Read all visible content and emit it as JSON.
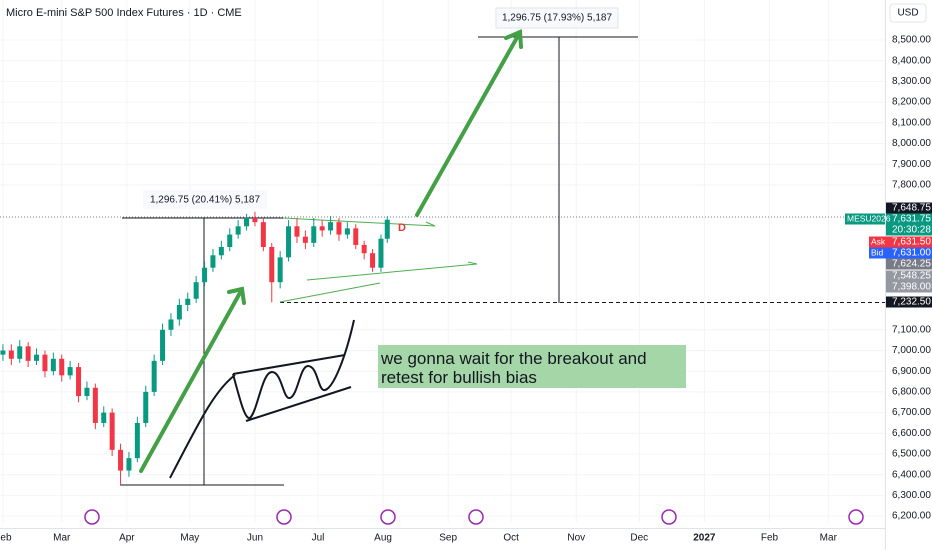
{
  "chart_data": {
    "type": "candlestick",
    "title": "Micro E-mini S&P 500 Index Futures · 1D · CME",
    "currency": "USD",
    "x": [
      31,
      35,
      39,
      43,
      47,
      51,
      55,
      59,
      63,
      67,
      71,
      75,
      79,
      83,
      87,
      91,
      95,
      99,
      103,
      107,
      111,
      115,
      119,
      123,
      127,
      131,
      135,
      139,
      143,
      147,
      151,
      155,
      159,
      163,
      167,
      171,
      175,
      179,
      183,
      187,
      191,
      195,
      199,
      203,
      207,
      211,
      214
    ],
    "open": [
      6980,
      7000,
      6960,
      7020,
      6950,
      6980,
      6900,
      6960,
      6880,
      6920,
      6780,
      6820,
      6650,
      6700,
      6520,
      6420,
      6480,
      6650,
      6800,
      6950,
      7100,
      7150,
      7220,
      7250,
      7330,
      7400,
      7460,
      7500,
      7560,
      7600,
      7640,
      7620,
      7500,
      7330,
      7450,
      7600,
      7550,
      7520,
      7600,
      7580,
      7620,
      7560,
      7590,
      7510,
      7470,
      7400,
      7540
    ],
    "high": [
      7030,
      7030,
      7050,
      7040,
      7010,
      7000,
      6990,
      6980,
      6950,
      6940,
      6850,
      6840,
      6730,
      6720,
      6550,
      6510,
      6680,
      6830,
      6980,
      7130,
      7180,
      7250,
      7280,
      7360,
      7430,
      7490,
      7530,
      7590,
      7630,
      7660,
      7670,
      7640,
      7520,
      7480,
      7630,
      7640,
      7580,
      7640,
      7630,
      7650,
      7640,
      7620,
      7610,
      7530,
      7490,
      7560,
      7648.75
    ],
    "low": [
      6950,
      6930,
      6940,
      6920,
      6930,
      6870,
      6880,
      6850,
      6860,
      6750,
      6760,
      6620,
      6630,
      6490,
      6350,
      6390,
      6460,
      6630,
      6780,
      6930,
      7070,
      7120,
      7190,
      7230,
      7310,
      7380,
      7440,
      7480,
      7540,
      7580,
      7600,
      7480,
      7232.5,
      7300,
      7430,
      7520,
      7490,
      7500,
      7550,
      7560,
      7530,
      7540,
      7490,
      7440,
      7380,
      7380,
      7520
    ],
    "close": [
      7000,
      6960,
      7020,
      6950,
      6980,
      6900,
      6960,
      6880,
      6920,
      6780,
      6820,
      6650,
      6700,
      6520,
      6420,
      6480,
      6650,
      6800,
      6950,
      7100,
      7150,
      7220,
      7250,
      7330,
      7400,
      7460,
      7500,
      7560,
      7600,
      7640,
      7620,
      7500,
      7330,
      7450,
      7600,
      7550,
      7520,
      7600,
      7580,
      7620,
      7560,
      7590,
      7510,
      7470,
      7400,
      7540,
      7631.75
    ],
    "up_color": "#089981",
    "down_color": "#f23645",
    "xlim": [
      29.6,
      451
    ],
    "xticks": [
      {
        "value": 31,
        "label": "Feb"
      },
      {
        "value": 59,
        "label": "Mar"
      },
      {
        "value": 90,
        "label": "Apr"
      },
      {
        "value": 120,
        "label": "May"
      },
      {
        "value": 151,
        "label": "Jun"
      },
      {
        "value": 181,
        "label": "Jul"
      },
      {
        "value": 212,
        "label": "Aug"
      },
      {
        "value": 243,
        "label": "Sep"
      },
      {
        "value": 273,
        "label": "Oct"
      },
      {
        "value": 304,
        "label": "Nov"
      },
      {
        "value": 334,
        "label": "Dec"
      },
      {
        "value": 365,
        "label": "2027"
      },
      {
        "value": 396,
        "label": "Feb"
      },
      {
        "value": 424,
        "label": "Mar"
      }
    ],
    "ylim": [
      6171.5,
      8693.2
    ],
    "yticks": [
      {
        "value": 8500,
        "label": "8,500.00"
      },
      {
        "value": 8400,
        "label": "8,400.00"
      },
      {
        "value": 8300,
        "label": "8,300.00"
      },
      {
        "value": 8200,
        "label": "8,200.00"
      },
      {
        "value": 8100,
        "label": "8,100.00"
      },
      {
        "value": 8000,
        "label": "8,000.00"
      },
      {
        "value": 7900,
        "label": "7,900.00"
      },
      {
        "value": 7800,
        "label": "7,800.00"
      },
      {
        "value": 7100,
        "label": "7,100.00"
      },
      {
        "value": 7000,
        "label": "7,000.00"
      },
      {
        "value": 6900,
        "label": "6,900.00"
      },
      {
        "value": 6800,
        "label": "6,800.00"
      },
      {
        "value": 6700,
        "label": "6,700.00"
      },
      {
        "value": 6600,
        "label": "6,600.00"
      },
      {
        "value": 6500,
        "label": "6,500.00"
      },
      {
        "value": 6400,
        "label": "6,400.00"
      },
      {
        "value": 6300,
        "label": "6,300.00"
      },
      {
        "value": 6200,
        "label": "6,200.00"
      }
    ],
    "price_labels": [
      {
        "label": "7,648.75",
        "color": "#131722"
      },
      {
        "label": "7,631.75",
        "color": "#089981"
      },
      {
        "label": "20:30:28",
        "color": "#089981"
      },
      {
        "label": "7,631.50",
        "color": "#f23645"
      },
      {
        "label": "7,631.00",
        "color": "#2962ff"
      },
      {
        "label": "7,624.25",
        "color": "#787b86"
      },
      {
        "label": "7,548.25",
        "color": "#9598a1"
      },
      {
        "label": "7,398.00",
        "color": "#9598a1"
      },
      {
        "label": "7,232.50",
        "color": "#131722"
      }
    ],
    "symbol": "MESU2026",
    "ask": "Ask",
    "bid": "Bid",
    "measures": [
      "1,296.75 (20.41%) 5,187",
      "1,296.75 (17.93%) 5,187"
    ],
    "marker": "D",
    "annotation": [
      "we gonna wait for the breakout and",
      "retest for bullish bias"
    ]
  }
}
